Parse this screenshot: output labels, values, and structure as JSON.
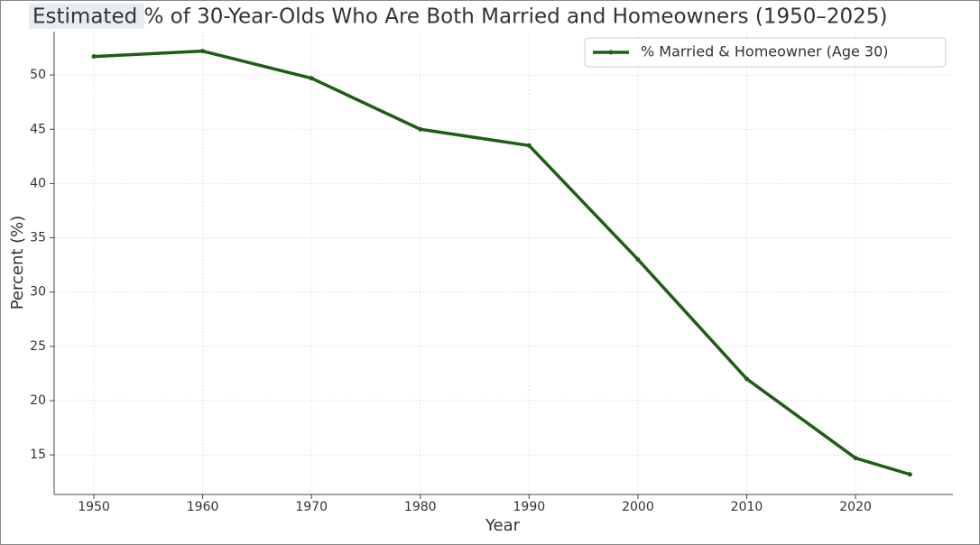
{
  "chart_data": {
    "type": "line",
    "title": "Estimated % of 30-Year-Olds Who Are Both Married and Homeowners (1950–2025)",
    "x_label": "Year",
    "y_label": "Percent (%)",
    "x": [
      1950,
      1960,
      1970,
      1980,
      1990,
      2000,
      2010,
      2020,
      2025
    ],
    "series": [
      {
        "name": "% Married & Homeowner (Age 30)",
        "color": "#1e5e14",
        "values": [
          51.7,
          52.2,
          49.7,
          45,
          43.5,
          33,
          22,
          14.7,
          13.2
        ]
      }
    ],
    "xlim": [
      1946.35,
      2028.95
    ],
    "xticks": [
      1950,
      1960,
      1970,
      1980,
      1990,
      2000,
      2010,
      2020
    ],
    "ylim": [
      11.35,
      54
    ],
    "yticks": [
      15,
      20,
      25,
      30,
      35,
      40,
      45,
      50
    ],
    "grid": true,
    "legend": "upper right"
  }
}
